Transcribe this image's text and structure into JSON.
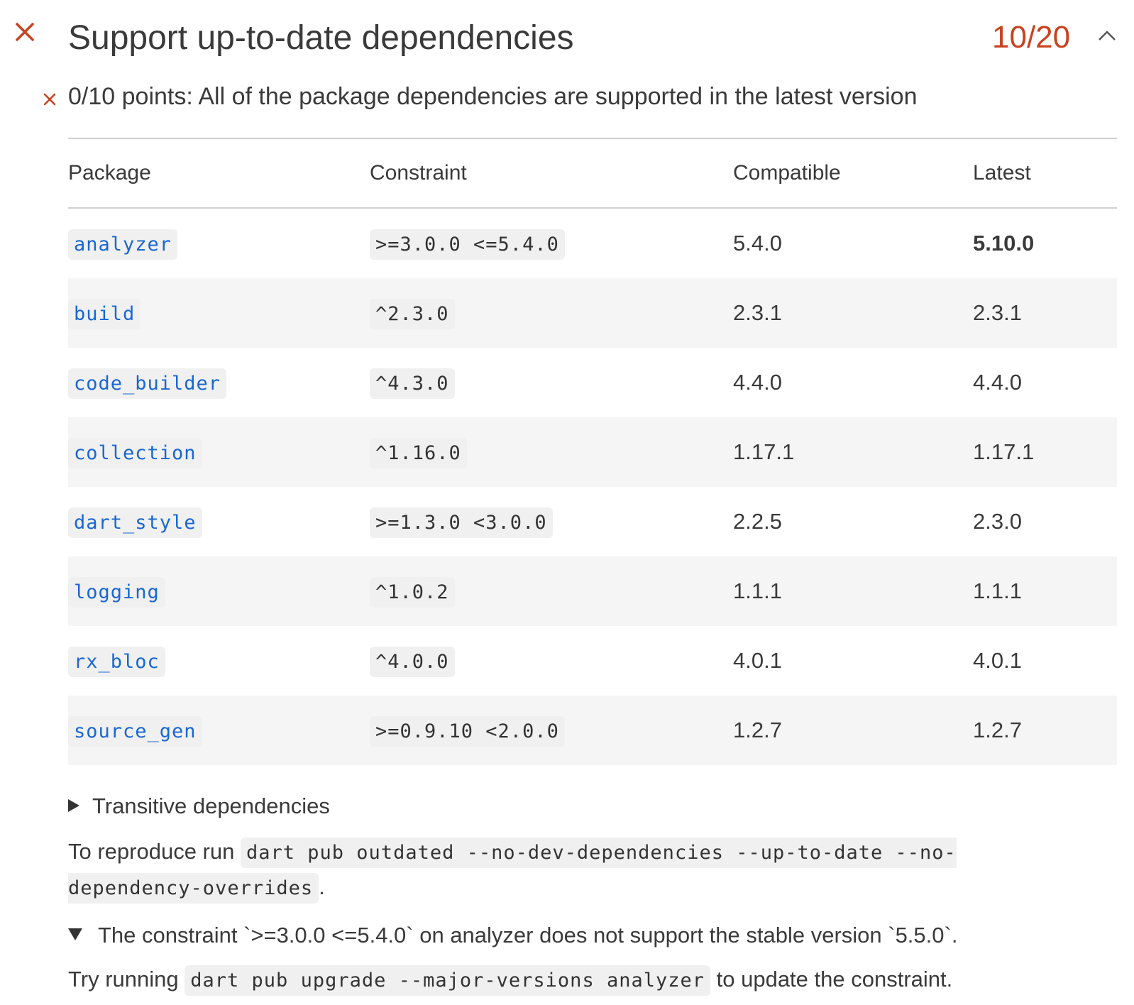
{
  "header": {
    "title": "Support up-to-date dependencies",
    "score": "10/20",
    "status_icon": "close-icon",
    "toggle_icon": "chevron-up-icon",
    "accent_color": "#c9421e"
  },
  "subsection": {
    "text": "0/10 points: All of the package dependencies are supported in the latest version",
    "icon": "close-icon"
  },
  "table": {
    "headers": [
      "Package",
      "Constraint",
      "Compatible",
      "Latest"
    ],
    "rows": [
      {
        "package": "analyzer",
        "constraint": ">=3.0.0 <=5.4.0",
        "compatible": "5.4.0",
        "latest": "5.10.0"
      },
      {
        "package": "build",
        "constraint": "^2.3.0",
        "compatible": "2.3.1",
        "latest": "2.3.1"
      },
      {
        "package": "code_builder",
        "constraint": "^4.3.0",
        "compatible": "4.4.0",
        "latest": "4.4.0"
      },
      {
        "package": "collection",
        "constraint": "^1.16.0",
        "compatible": "1.17.1",
        "latest": "1.17.1"
      },
      {
        "package": "dart_style",
        "constraint": ">=1.3.0 <3.0.0",
        "compatible": "2.2.5",
        "latest": "2.3.0"
      },
      {
        "package": "logging",
        "constraint": "^1.0.2",
        "compatible": "1.1.1",
        "latest": "1.1.1"
      },
      {
        "package": "rx_bloc",
        "constraint": "^4.0.0",
        "compatible": "4.0.1",
        "latest": "4.0.1"
      },
      {
        "package": "source_gen",
        "constraint": ">=0.9.10 <2.0.0",
        "compatible": "1.2.7",
        "latest": "1.2.7"
      }
    ]
  },
  "transitive": {
    "label": "Transitive dependencies",
    "icon": "triangle-right-icon"
  },
  "reproduce": {
    "prefix": "To reproduce run",
    "command": "dart pub outdated --no-dev-dependencies --up-to-date --no-dependency-overrides",
    "suffix": "."
  },
  "constraint_note": {
    "text": "The constraint `>=3.0.0 <=5.4.0` on analyzer does not support the stable version `5.5.0`.",
    "icon": "triangle-down-icon"
  },
  "try_running": {
    "prefix": "Try running",
    "command": "dart pub upgrade --major-versions analyzer",
    "suffix": "to update the constraint."
  }
}
